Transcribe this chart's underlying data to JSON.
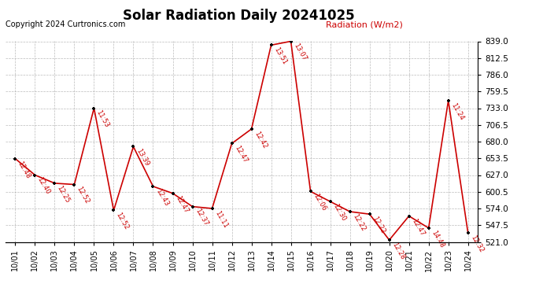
{
  "title": "Solar Radiation Daily 20241025",
  "copyright": "Copyright 2024 Curtronics.com",
  "ylabel_right": "Radiation (W/m2)",
  "ylim": [
    521.0,
    839.0
  ],
  "yticks": [
    521.0,
    547.5,
    574.0,
    600.5,
    627.0,
    653.5,
    680.0,
    706.5,
    733.0,
    759.5,
    786.0,
    812.5,
    839.0
  ],
  "dates": [
    "10/01",
    "10/02",
    "10/03",
    "10/04",
    "10/05",
    "10/06",
    "10/07",
    "10/08",
    "10/09",
    "10/10",
    "10/11",
    "10/12",
    "10/13",
    "10/14",
    "10/15",
    "10/16",
    "10/17",
    "10/18",
    "10/19",
    "10/20",
    "10/21",
    "10/22",
    "10/23",
    "10/24"
  ],
  "values": [
    653,
    627,
    614,
    612,
    733,
    571,
    672,
    609,
    598,
    577,
    574,
    677,
    700,
    833,
    839,
    601,
    585,
    569,
    565,
    524,
    562,
    543,
    745,
    535
  ],
  "time_labels": [
    "12:48",
    "12:40",
    "12:25",
    "12:52",
    "11:53",
    "12:52",
    "13:39",
    "12:43",
    "12:47",
    "12:37",
    "11:11",
    "12:47",
    "12:42",
    "13:51",
    "13:07",
    "12:06",
    "12:30",
    "12:22",
    "12:22",
    "12:28",
    "12:47",
    "14:48",
    "11:24",
    "12:32"
  ],
  "line_color": "#cc0000",
  "marker_color": "#000000",
  "title_fontsize": 12,
  "bg_color": "#ffffff",
  "grid_color": "#aaaaaa"
}
